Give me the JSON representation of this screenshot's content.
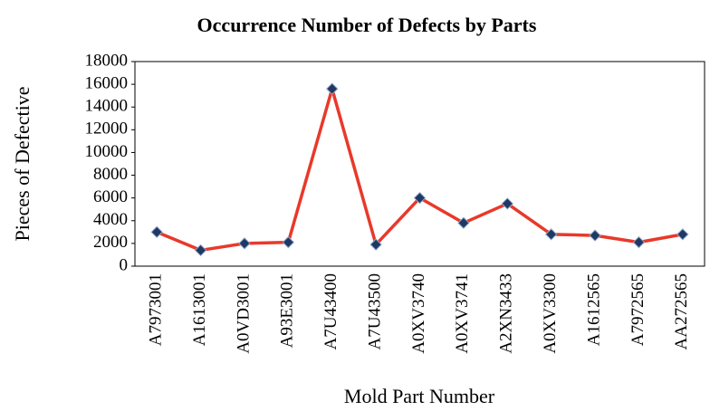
{
  "chart_data": {
    "type": "line",
    "title": "Occurrence Number of Defects by Parts",
    "x_label": "Mold Part Number",
    "y_label": "Pieces of Defective",
    "categories": [
      "A7973001",
      "A1613001",
      "A0VD3001",
      "A93E3001",
      "A7U43400",
      "A7U43500",
      "A0XV3740",
      "A0XV3741",
      "A2XN3433",
      "A0XV3300",
      "A1612565",
      "A7972565",
      "AA272565"
    ],
    "series": [
      {
        "name": "Pieces of Defective",
        "color": "#e8392a",
        "marker_color": "#1f3864",
        "values": [
          3000,
          1400,
          2000,
          2100,
          15600,
          1900,
          6000,
          3800,
          5500,
          2800,
          2700,
          2100,
          2800
        ]
      }
    ],
    "ylim": [
      0,
      18000
    ],
    "yticks": [
      0,
      2000,
      4000,
      6000,
      8000,
      10000,
      12000,
      14000,
      16000,
      18000
    ],
    "grid": false
  }
}
